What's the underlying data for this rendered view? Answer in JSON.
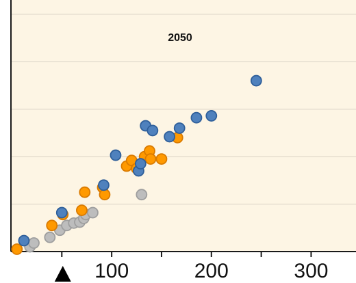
{
  "chart_data": {
    "type": "scatter",
    "title": "2050",
    "xlabel": "",
    "ylabel": "",
    "xlim": [
      -1,
      345
    ],
    "ylim": [
      0,
      5.3
    ],
    "x_ticks": [
      100,
      200,
      300
    ],
    "x_tick_labels": [
      "100",
      "200",
      "300"
    ],
    "grid": {
      "horizontal": true,
      "vertical": false
    },
    "marker": "triangle-up",
    "marker_x": 51,
    "colors": {
      "background": "#fdf5e4",
      "grid": "#d8d2c3",
      "axis": "#1a1a1a"
    },
    "series": [
      {
        "color": "#bdbdbd",
        "stroke": "#9e9e9e",
        "points": [
          [
            18,
            0.1
          ],
          [
            22,
            0.18
          ],
          [
            38,
            0.3
          ],
          [
            48,
            0.45
          ],
          [
            55,
            0.55
          ],
          [
            62,
            0.6
          ],
          [
            68,
            0.62
          ],
          [
            72,
            0.7
          ],
          [
            74,
            0.78
          ],
          [
            81,
            0.82
          ],
          [
            130,
            1.2
          ]
        ]
      },
      {
        "color": "#ff9900",
        "stroke": "#d97a00",
        "points": [
          [
            5,
            0.05
          ],
          [
            40,
            0.55
          ],
          [
            51,
            0.78
          ],
          [
            70,
            0.87
          ],
          [
            73,
            1.25
          ],
          [
            91,
            1.35
          ],
          [
            93,
            1.2
          ],
          [
            115,
            1.8
          ],
          [
            120,
            1.92
          ],
          [
            125,
            1.75
          ],
          [
            133,
            2.0
          ],
          [
            138,
            2.12
          ],
          [
            139,
            1.95
          ],
          [
            150,
            1.95
          ],
          [
            166,
            2.4
          ]
        ]
      },
      {
        "color": "#4f81bd",
        "stroke": "#2f5f9a",
        "points": [
          [
            12,
            0.23
          ],
          [
            50,
            0.82
          ],
          [
            92,
            1.4
          ],
          [
            104,
            2.03
          ],
          [
            127,
            1.7
          ],
          [
            129,
            1.85
          ],
          [
            134,
            2.65
          ],
          [
            141,
            2.55
          ],
          [
            158,
            2.42
          ],
          [
            168,
            2.6
          ],
          [
            185,
            2.82
          ],
          [
            200,
            2.86
          ],
          [
            245,
            3.6
          ]
        ]
      }
    ]
  }
}
